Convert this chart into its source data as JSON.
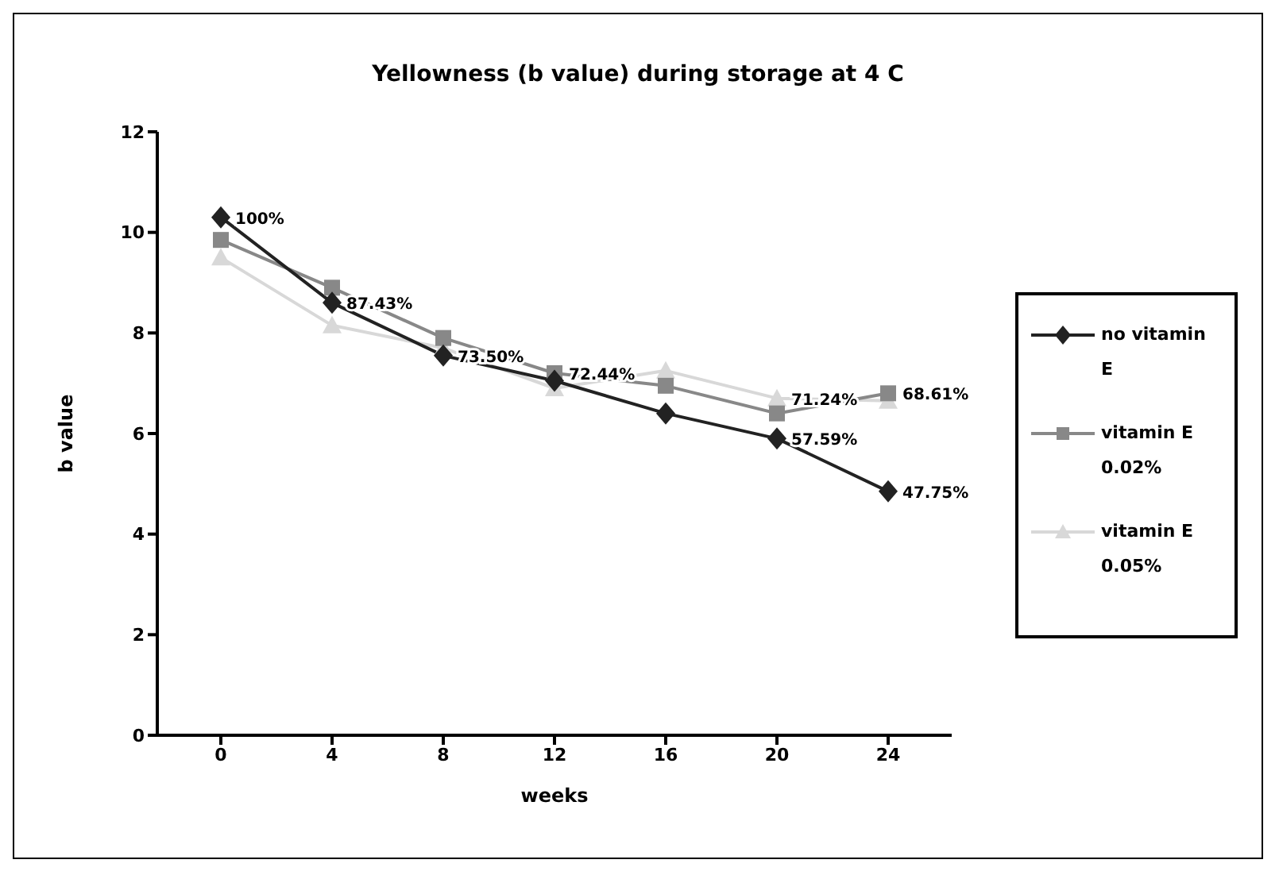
{
  "chart_data": {
    "type": "line",
    "title": "Yellowness (b value) during storage at 4 C",
    "xlabel": "weeks",
    "ylabel": "b value",
    "categories": [
      "0",
      "4",
      "8",
      "12",
      "16",
      "20",
      "24"
    ],
    "series": [
      {
        "name": "no vitamin E",
        "color": "#222222",
        "marker": "diamond",
        "values": [
          10.3,
          8.6,
          7.55,
          7.05,
          6.4,
          5.9,
          4.85
        ]
      },
      {
        "name": "vitamin E 0.02%",
        "color": "#888888",
        "marker": "square",
        "values": [
          9.85,
          8.9,
          7.9,
          7.2,
          6.95,
          6.4,
          6.8
        ]
      },
      {
        "name": "vitamin E 0.05%",
        "color": "#d8d8d8",
        "marker": "triangle",
        "values": [
          9.5,
          8.15,
          7.7,
          6.9,
          7.25,
          6.7,
          6.65
        ]
      }
    ],
    "annotations": [
      {
        "text": "100%",
        "x": "0",
        "y": 10.3
      },
      {
        "text": "87.43%",
        "x": "4",
        "y": 8.6
      },
      {
        "text": "73.50%",
        "x": "8",
        "y": 7.55
      },
      {
        "text": "72.44%",
        "x": "12",
        "y": 7.2
      },
      {
        "text": "71.24%",
        "x": "20",
        "y": 6.7
      },
      {
        "text": "57.59%",
        "x": "20",
        "y": 5.9
      },
      {
        "text": "68.61%",
        "x": "24",
        "y": 6.8
      },
      {
        "text": "47.75%",
        "x": "24",
        "y": 4.85
      }
    ],
    "ylim": [
      0,
      12
    ],
    "yticks": [
      0,
      2,
      4,
      6,
      8,
      10,
      12
    ],
    "grid": false,
    "legend": "right",
    "line_style": "solid"
  }
}
